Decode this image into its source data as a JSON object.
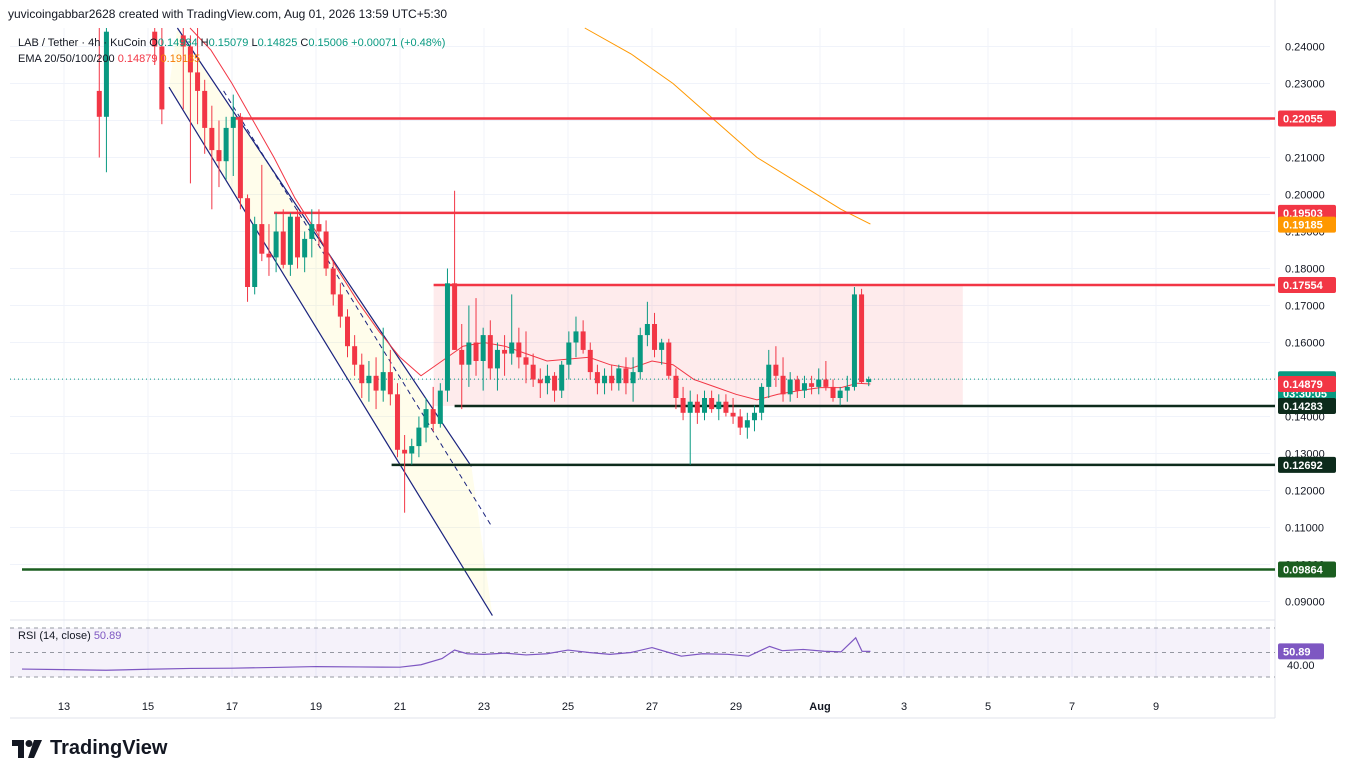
{
  "header": {
    "credit": "yuvicoingabbar2628 created with TradingView.com, Aug 01, 2026 13:59 UTC+5:30"
  },
  "legend": {
    "symbol": "LAB / Tether · 4h · KuCoin",
    "open_label": "O",
    "open": "0.14934",
    "high_label": "H",
    "high": "0.15079",
    "low_label": "L",
    "low": "0.14825",
    "close_label": "C",
    "close": "0.15006",
    "change": "+0.00071 (+0.48%)",
    "ema_label": "EMA 20/50/100/200",
    "ema20": "0.14879",
    "ema50": "0.19185"
  },
  "rsi": {
    "label": "RSI (14, close)",
    "value": "50.89",
    "level_label": "40.00"
  },
  "colors": {
    "up": "#089981",
    "down": "#f23645",
    "resistance": "#f23645",
    "support": "#0d2b1c",
    "ema20": "#f23645",
    "ema50": "#ff9800",
    "channel": "#1a237e",
    "rsi": "#7e57c2"
  },
  "chart_data": {
    "type": "candlestick",
    "timeframe": "4h",
    "x_axis": {
      "ticks": [
        "13",
        "15",
        "17",
        "19",
        "21",
        "23",
        "25",
        "27",
        "29",
        "Aug",
        "3",
        "5",
        "7",
        "9"
      ]
    },
    "y_axis": {
      "ylim": [
        0.085,
        0.245
      ],
      "ticks": [
        "0.24000",
        "0.23000",
        "0.22000",
        "0.21000",
        "0.20000",
        "0.19000",
        "0.18000",
        "0.17000",
        "0.16000",
        "0.15000",
        "0.14000",
        "0.13000",
        "0.12000",
        "0.11000",
        "0.10000",
        "0.09000"
      ]
    },
    "price_tags": [
      {
        "value": 0.22055,
        "label": "0.22055",
        "kind": "resistance"
      },
      {
        "value": 0.19503,
        "label": "0.19503",
        "kind": "resistance"
      },
      {
        "value": 0.19185,
        "label": "0.19185",
        "kind": "ema50"
      },
      {
        "value": 0.17554,
        "label": "0.17554",
        "kind": "resistance"
      },
      {
        "value": 0.15006,
        "label": "0.15006",
        "sub": "03:30:05",
        "kind": "last"
      },
      {
        "value": 0.14879,
        "label": "0.14879",
        "kind": "ema20"
      },
      {
        "value": 0.14283,
        "label": "0.14283",
        "kind": "support"
      },
      {
        "value": 0.12692,
        "label": "0.12692",
        "kind": "support"
      },
      {
        "value": 0.09864,
        "label": "0.09864",
        "kind": "support-green"
      }
    ],
    "horizontal_lines": [
      {
        "value": 0.22055,
        "from_day": 17.0,
        "kind": "resistance"
      },
      {
        "value": 0.19503,
        "from_day": 18.0,
        "kind": "resistance"
      },
      {
        "value": 0.17554,
        "from_day": 21.8,
        "kind": "resistance"
      },
      {
        "value": 0.14283,
        "from_day": 22.3,
        "kind": "support"
      },
      {
        "value": 0.12692,
        "from_day": 20.8,
        "kind": "support"
      },
      {
        "value": 0.09864,
        "from_day": 12.0,
        "kind": "support-green"
      }
    ],
    "range_box": {
      "from_day": 21.8,
      "to_day": 34.4,
      "top": 0.17554,
      "bottom": 0.14283
    },
    "channel": {
      "upper": [
        [
          15.7,
          0.245
        ],
        [
          22.7,
          0.1265
        ]
      ],
      "lower": [
        [
          15.5,
          0.229
        ],
        [
          23.2,
          0.0862
        ]
      ],
      "mid": [
        [
          16.8,
          0.228
        ],
        [
          23.2,
          0.11
        ]
      ]
    },
    "candles": [
      {
        "day": 13.84,
        "o": 0.228,
        "h": 0.245,
        "l": 0.21,
        "c": 0.221
      },
      {
        "day": 14.01,
        "o": 0.221,
        "h": 0.245,
        "l": 0.206,
        "c": 0.244
      },
      {
        "day": 15.16,
        "o": 0.244,
        "h": 0.245,
        "l": 0.235,
        "c": 0.24
      },
      {
        "day": 15.33,
        "o": 0.24,
        "h": 0.245,
        "l": 0.219,
        "c": 0.223
      },
      {
        "day": 15.84,
        "o": 0.243,
        "h": 0.245,
        "l": 0.223,
        "c": 0.24
      },
      {
        "day": 16.01,
        "o": 0.24,
        "h": 0.243,
        "l": 0.203,
        "c": 0.233
      },
      {
        "day": 16.18,
        "o": 0.233,
        "h": 0.245,
        "l": 0.219,
        "c": 0.228
      },
      {
        "day": 16.35,
        "o": 0.228,
        "h": 0.231,
        "l": 0.211,
        "c": 0.218
      },
      {
        "day": 16.52,
        "o": 0.218,
        "h": 0.224,
        "l": 0.196,
        "c": 0.212
      },
      {
        "day": 16.69,
        "o": 0.212,
        "h": 0.22,
        "l": 0.202,
        "c": 0.209
      },
      {
        "day": 16.86,
        "o": 0.209,
        "h": 0.221,
        "l": 0.204,
        "c": 0.218
      },
      {
        "day": 17.03,
        "o": 0.218,
        "h": 0.227,
        "l": 0.205,
        "c": 0.221
      },
      {
        "day": 17.2,
        "o": 0.221,
        "h": 0.222,
        "l": 0.196,
        "c": 0.199
      },
      {
        "day": 17.37,
        "o": 0.199,
        "h": 0.2,
        "l": 0.171,
        "c": 0.175
      },
      {
        "day": 17.54,
        "o": 0.175,
        "h": 0.194,
        "l": 0.173,
        "c": 0.192
      },
      {
        "day": 17.71,
        "o": 0.192,
        "h": 0.208,
        "l": 0.182,
        "c": 0.184
      },
      {
        "day": 17.88,
        "o": 0.184,
        "h": 0.192,
        "l": 0.178,
        "c": 0.183
      },
      {
        "day": 18.05,
        "o": 0.183,
        "h": 0.195,
        "l": 0.179,
        "c": 0.19
      },
      {
        "day": 18.22,
        "o": 0.19,
        "h": 0.196,
        "l": 0.18,
        "c": 0.181
      },
      {
        "day": 18.39,
        "o": 0.181,
        "h": 0.195,
        "l": 0.178,
        "c": 0.194
      },
      {
        "day": 18.56,
        "o": 0.194,
        "h": 0.196,
        "l": 0.18,
        "c": 0.183
      },
      {
        "day": 18.73,
        "o": 0.183,
        "h": 0.19,
        "l": 0.179,
        "c": 0.188
      },
      {
        "day": 18.9,
        "o": 0.188,
        "h": 0.196,
        "l": 0.183,
        "c": 0.192
      },
      {
        "day": 19.07,
        "o": 0.192,
        "h": 0.196,
        "l": 0.186,
        "c": 0.19
      },
      {
        "day": 19.24,
        "o": 0.19,
        "h": 0.193,
        "l": 0.178,
        "c": 0.18
      },
      {
        "day": 19.41,
        "o": 0.18,
        "h": 0.182,
        "l": 0.17,
        "c": 0.173
      },
      {
        "day": 19.58,
        "o": 0.173,
        "h": 0.176,
        "l": 0.164,
        "c": 0.167
      },
      {
        "day": 19.75,
        "o": 0.167,
        "h": 0.169,
        "l": 0.156,
        "c": 0.159
      },
      {
        "day": 19.92,
        "o": 0.159,
        "h": 0.162,
        "l": 0.151,
        "c": 0.154
      },
      {
        "day": 20.09,
        "o": 0.154,
        "h": 0.157,
        "l": 0.145,
        "c": 0.149
      },
      {
        "day": 20.26,
        "o": 0.149,
        "h": 0.155,
        "l": 0.144,
        "c": 0.151
      },
      {
        "day": 20.43,
        "o": 0.151,
        "h": 0.156,
        "l": 0.142,
        "c": 0.147
      },
      {
        "day": 20.6,
        "o": 0.147,
        "h": 0.164,
        "l": 0.144,
        "c": 0.152
      },
      {
        "day": 20.77,
        "o": 0.152,
        "h": 0.158,
        "l": 0.143,
        "c": 0.146
      },
      {
        "day": 20.94,
        "o": 0.146,
        "h": 0.149,
        "l": 0.129,
        "c": 0.131
      },
      {
        "day": 21.11,
        "o": 0.131,
        "h": 0.135,
        "l": 0.114,
        "c": 0.13
      },
      {
        "day": 21.28,
        "o": 0.13,
        "h": 0.134,
        "l": 0.127,
        "c": 0.132
      },
      {
        "day": 21.45,
        "o": 0.132,
        "h": 0.14,
        "l": 0.129,
        "c": 0.137
      },
      {
        "day": 21.62,
        "o": 0.137,
        "h": 0.145,
        "l": 0.133,
        "c": 0.142
      },
      {
        "day": 21.79,
        "o": 0.142,
        "h": 0.148,
        "l": 0.136,
        "c": 0.138
      },
      {
        "day": 21.96,
        "o": 0.138,
        "h": 0.149,
        "l": 0.137,
        "c": 0.147
      },
      {
        "day": 22.13,
        "o": 0.147,
        "h": 0.18,
        "l": 0.144,
        "c": 0.176
      },
      {
        "day": 22.3,
        "o": 0.176,
        "h": 0.201,
        "l": 0.158,
        "c": 0.158
      },
      {
        "day": 22.47,
        "o": 0.158,
        "h": 0.165,
        "l": 0.142,
        "c": 0.154
      },
      {
        "day": 22.64,
        "o": 0.154,
        "h": 0.17,
        "l": 0.148,
        "c": 0.16
      },
      {
        "day": 22.81,
        "o": 0.16,
        "h": 0.172,
        "l": 0.151,
        "c": 0.155
      },
      {
        "day": 22.98,
        "o": 0.155,
        "h": 0.164,
        "l": 0.147,
        "c": 0.162
      },
      {
        "day": 23.15,
        "o": 0.162,
        "h": 0.166,
        "l": 0.15,
        "c": 0.153
      },
      {
        "day": 23.32,
        "o": 0.153,
        "h": 0.16,
        "l": 0.147,
        "c": 0.158
      },
      {
        "day": 23.49,
        "o": 0.158,
        "h": 0.162,
        "l": 0.151,
        "c": 0.157
      },
      {
        "day": 23.66,
        "o": 0.157,
        "h": 0.173,
        "l": 0.154,
        "c": 0.16
      },
      {
        "day": 23.83,
        "o": 0.16,
        "h": 0.164,
        "l": 0.153,
        "c": 0.156
      },
      {
        "day": 24.0,
        "o": 0.156,
        "h": 0.163,
        "l": 0.149,
        "c": 0.154
      },
      {
        "day": 24.17,
        "o": 0.154,
        "h": 0.157,
        "l": 0.148,
        "c": 0.15
      },
      {
        "day": 24.34,
        "o": 0.15,
        "h": 0.153,
        "l": 0.145,
        "c": 0.149
      },
      {
        "day": 24.51,
        "o": 0.149,
        "h": 0.154,
        "l": 0.146,
        "c": 0.151
      },
      {
        "day": 24.68,
        "o": 0.151,
        "h": 0.152,
        "l": 0.144,
        "c": 0.147
      },
      {
        "day": 24.85,
        "o": 0.147,
        "h": 0.155,
        "l": 0.145,
        "c": 0.154
      },
      {
        "day": 25.02,
        "o": 0.154,
        "h": 0.163,
        "l": 0.15,
        "c": 0.16
      },
      {
        "day": 25.19,
        "o": 0.16,
        "h": 0.167,
        "l": 0.156,
        "c": 0.163
      },
      {
        "day": 25.36,
        "o": 0.163,
        "h": 0.166,
        "l": 0.157,
        "c": 0.158
      },
      {
        "day": 25.53,
        "o": 0.158,
        "h": 0.16,
        "l": 0.15,
        "c": 0.152
      },
      {
        "day": 25.7,
        "o": 0.152,
        "h": 0.154,
        "l": 0.146,
        "c": 0.149
      },
      {
        "day": 25.87,
        "o": 0.149,
        "h": 0.153,
        "l": 0.146,
        "c": 0.151
      },
      {
        "day": 26.04,
        "o": 0.151,
        "h": 0.154,
        "l": 0.147,
        "c": 0.149
      },
      {
        "day": 26.21,
        "o": 0.149,
        "h": 0.154,
        "l": 0.147,
        "c": 0.153
      },
      {
        "day": 26.38,
        "o": 0.153,
        "h": 0.156,
        "l": 0.146,
        "c": 0.149
      },
      {
        "day": 26.55,
        "o": 0.149,
        "h": 0.156,
        "l": 0.144,
        "c": 0.152
      },
      {
        "day": 26.72,
        "o": 0.152,
        "h": 0.164,
        "l": 0.15,
        "c": 0.162
      },
      {
        "day": 26.89,
        "o": 0.162,
        "h": 0.171,
        "l": 0.159,
        "c": 0.165
      },
      {
        "day": 27.06,
        "o": 0.165,
        "h": 0.168,
        "l": 0.156,
        "c": 0.158
      },
      {
        "day": 27.23,
        "o": 0.158,
        "h": 0.161,
        "l": 0.154,
        "c": 0.16
      },
      {
        "day": 27.4,
        "o": 0.16,
        "h": 0.161,
        "l": 0.15,
        "c": 0.151
      },
      {
        "day": 27.57,
        "o": 0.151,
        "h": 0.153,
        "l": 0.142,
        "c": 0.145
      },
      {
        "day": 27.74,
        "o": 0.145,
        "h": 0.148,
        "l": 0.139,
        "c": 0.141
      },
      {
        "day": 27.91,
        "o": 0.141,
        "h": 0.147,
        "l": 0.127,
        "c": 0.144
      },
      {
        "day": 28.08,
        "o": 0.144,
        "h": 0.146,
        "l": 0.138,
        "c": 0.141
      },
      {
        "day": 28.25,
        "o": 0.141,
        "h": 0.147,
        "l": 0.139,
        "c": 0.145
      },
      {
        "day": 28.42,
        "o": 0.145,
        "h": 0.147,
        "l": 0.141,
        "c": 0.142
      },
      {
        "day": 28.59,
        "o": 0.142,
        "h": 0.146,
        "l": 0.139,
        "c": 0.144
      },
      {
        "day": 28.76,
        "o": 0.144,
        "h": 0.146,
        "l": 0.14,
        "c": 0.141
      },
      {
        "day": 28.93,
        "o": 0.141,
        "h": 0.145,
        "l": 0.138,
        "c": 0.14
      },
      {
        "day": 29.1,
        "o": 0.14,
        "h": 0.142,
        "l": 0.135,
        "c": 0.137
      },
      {
        "day": 29.27,
        "o": 0.137,
        "h": 0.141,
        "l": 0.134,
        "c": 0.139
      },
      {
        "day": 29.44,
        "o": 0.139,
        "h": 0.143,
        "l": 0.136,
        "c": 0.141
      },
      {
        "day": 29.61,
        "o": 0.141,
        "h": 0.149,
        "l": 0.139,
        "c": 0.148
      },
      {
        "day": 29.78,
        "o": 0.148,
        "h": 0.158,
        "l": 0.145,
        "c": 0.154
      },
      {
        "day": 29.95,
        "o": 0.154,
        "h": 0.159,
        "l": 0.148,
        "c": 0.151
      },
      {
        "day": 30.12,
        "o": 0.151,
        "h": 0.156,
        "l": 0.144,
        "c": 0.146
      },
      {
        "day": 30.29,
        "o": 0.146,
        "h": 0.152,
        "l": 0.144,
        "c": 0.15
      },
      {
        "day": 30.46,
        "o": 0.15,
        "h": 0.151,
        "l": 0.145,
        "c": 0.147
      },
      {
        "day": 30.63,
        "o": 0.147,
        "h": 0.151,
        "l": 0.145,
        "c": 0.149
      },
      {
        "day": 30.8,
        "o": 0.149,
        "h": 0.151,
        "l": 0.146,
        "c": 0.148
      },
      {
        "day": 30.97,
        "o": 0.148,
        "h": 0.153,
        "l": 0.146,
        "c": 0.15
      },
      {
        "day": 31.14,
        "o": 0.15,
        "h": 0.155,
        "l": 0.147,
        "c": 0.148
      },
      {
        "day": 31.31,
        "o": 0.148,
        "h": 0.15,
        "l": 0.144,
        "c": 0.145
      },
      {
        "day": 31.48,
        "o": 0.145,
        "h": 0.148,
        "l": 0.143,
        "c": 0.147
      },
      {
        "day": 31.65,
        "o": 0.147,
        "h": 0.151,
        "l": 0.144,
        "c": 0.148
      },
      {
        "day": 31.82,
        "o": 0.148,
        "h": 0.175,
        "l": 0.147,
        "c": 0.173
      },
      {
        "day": 31.99,
        "o": 0.173,
        "h": 0.1745,
        "l": 0.149,
        "c": 0.1493
      },
      {
        "day": 32.16,
        "o": 0.1493,
        "h": 0.1508,
        "l": 0.1482,
        "c": 0.1501
      }
    ],
    "ema20": [
      [
        16.0,
        0.245
      ],
      [
        16.5,
        0.239
      ],
      [
        17.0,
        0.23
      ],
      [
        17.5,
        0.22
      ],
      [
        18.0,
        0.21
      ],
      [
        18.5,
        0.199
      ],
      [
        19.0,
        0.19
      ],
      [
        19.5,
        0.18
      ],
      [
        20.0,
        0.171
      ],
      [
        20.5,
        0.163
      ],
      [
        21.0,
        0.156
      ],
      [
        21.5,
        0.151
      ],
      [
        22.0,
        0.155
      ],
      [
        22.5,
        0.159
      ],
      [
        23.0,
        0.16
      ],
      [
        23.5,
        0.159
      ],
      [
        24.0,
        0.157
      ],
      [
        24.5,
        0.155
      ],
      [
        25.0,
        0.1555
      ],
      [
        25.5,
        0.156
      ],
      [
        26.0,
        0.154
      ],
      [
        26.5,
        0.153
      ],
      [
        27.0,
        0.155
      ],
      [
        27.5,
        0.154
      ],
      [
        28.0,
        0.15
      ],
      [
        28.5,
        0.148
      ],
      [
        29.0,
        0.146
      ],
      [
        29.5,
        0.1445
      ],
      [
        30.0,
        0.146
      ],
      [
        30.5,
        0.147
      ],
      [
        31.0,
        0.1478
      ],
      [
        31.5,
        0.1478
      ],
      [
        31.9,
        0.149
      ],
      [
        32.2,
        0.1488
      ]
    ],
    "ema50": [
      [
        25.4,
        0.245
      ],
      [
        26.5,
        0.238
      ],
      [
        27.5,
        0.23
      ],
      [
        28.5,
        0.22
      ],
      [
        29.5,
        0.21
      ],
      [
        30.5,
        0.203
      ],
      [
        31.5,
        0.196
      ],
      [
        32.2,
        0.192
      ]
    ],
    "rsi_series": [
      [
        12.0,
        36.5
      ],
      [
        13.0,
        36.0
      ],
      [
        14.0,
        35.5
      ],
      [
        15.0,
        36.3
      ],
      [
        16.0,
        37.0
      ],
      [
        17.0,
        37.2
      ],
      [
        18.0,
        37.8
      ],
      [
        19.0,
        38.5
      ],
      [
        20.0,
        38.2
      ],
      [
        21.0,
        38.0
      ],
      [
        21.5,
        40.0
      ],
      [
        22.0,
        45.0
      ],
      [
        22.3,
        52.0
      ],
      [
        22.6,
        49.0
      ],
      [
        23.0,
        48.5
      ],
      [
        23.5,
        49.5
      ],
      [
        24.0,
        48.0
      ],
      [
        24.5,
        49.0
      ],
      [
        25.0,
        52.0
      ],
      [
        25.5,
        50.0
      ],
      [
        26.0,
        48.5
      ],
      [
        26.5,
        50.0
      ],
      [
        27.0,
        54.0
      ],
      [
        27.4,
        50.0
      ],
      [
        27.7,
        47.0
      ],
      [
        28.2,
        49.0
      ],
      [
        28.8,
        48.5
      ],
      [
        29.3,
        47.0
      ],
      [
        29.8,
        55.0
      ],
      [
        30.1,
        51.5
      ],
      [
        30.6,
        52.5
      ],
      [
        31.1,
        51.0
      ],
      [
        31.5,
        50.5
      ],
      [
        31.85,
        62.0
      ],
      [
        32.0,
        51.0
      ],
      [
        32.2,
        50.9
      ]
    ],
    "rsi_ylim": [
      30,
      70
    ],
    "rsi_band": [
      30,
      70
    ]
  }
}
